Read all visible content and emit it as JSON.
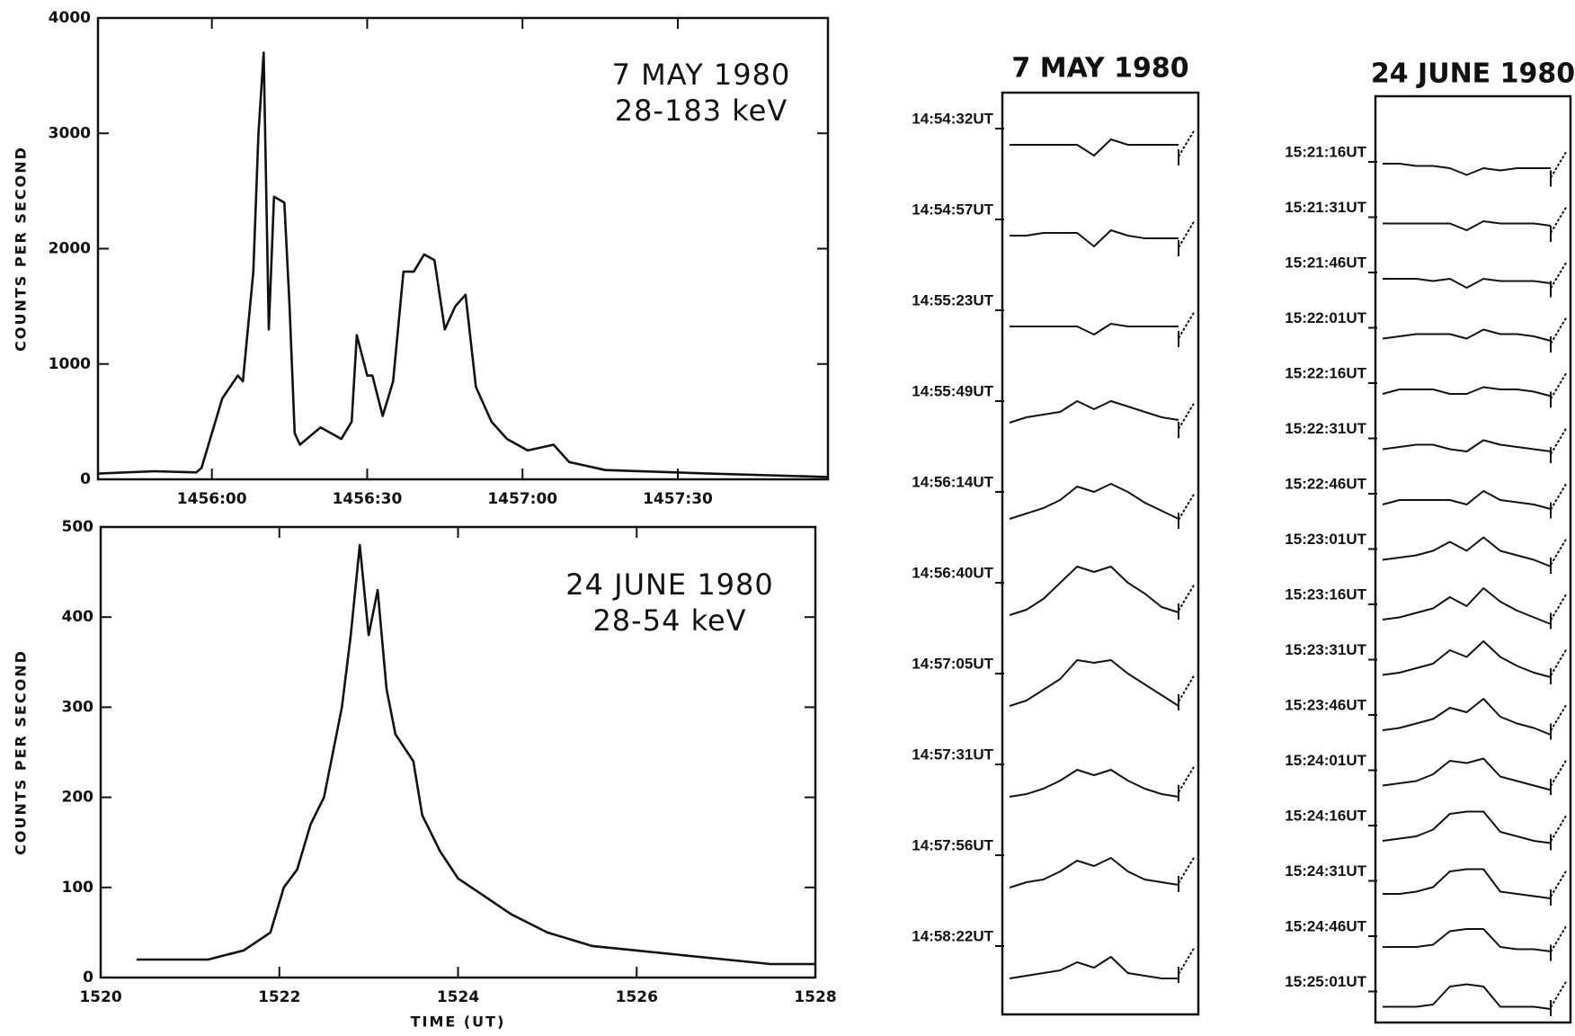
{
  "chart_data": [
    {
      "type": "line",
      "annotations": [
        "7 MAY 1980",
        "28-183 keV"
      ],
      "ylabel": "COUNTS PER SECOND",
      "x": [
        53738,
        53749,
        53757,
        53758,
        53762,
        53765,
        53766,
        53768,
        53769,
        53770,
        53771,
        53772,
        53774,
        53775,
        53776,
        53777,
        53781,
        53785,
        53787,
        53788,
        53790,
        53791,
        53793,
        53795,
        53797,
        53799,
        53801,
        53803,
        53805,
        53807,
        53809,
        53811,
        53814,
        53817,
        53821,
        53826,
        53829,
        53836,
        53856,
        53879
      ],
      "values": [
        50,
        70,
        60,
        100,
        700,
        900,
        850,
        1800,
        3000,
        3700,
        1300,
        2450,
        2400,
        1500,
        400,
        300,
        450,
        350,
        500,
        1250,
        900,
        900,
        550,
        850,
        1800,
        1800,
        1950,
        1900,
        1300,
        1500,
        1600,
        800,
        500,
        350,
        250,
        300,
        150,
        80,
        50,
        20
      ],
      "xlim": [
        53738,
        53879
      ],
      "xticks": [
        {
          "value": 53760,
          "label": "1456:00"
        },
        {
          "value": 53790,
          "label": "1456:30"
        },
        {
          "value": 53820,
          "label": "1457:00"
        },
        {
          "value": 53850,
          "label": "1457:30"
        }
      ],
      "ylim": [
        0,
        4000
      ],
      "yticks": [
        0,
        1000,
        2000,
        3000,
        4000
      ],
      "color": "#111111"
    },
    {
      "type": "line",
      "annotations": [
        "24 JUNE 1980",
        "28-54 keV"
      ],
      "ylabel": "COUNTS PER SECOND",
      "xlabel": "TIME (UT)",
      "x": [
        1520.4,
        1520.8,
        1521.2,
        1521.6,
        1521.9,
        1522.05,
        1522.2,
        1522.35,
        1522.5,
        1522.6,
        1522.7,
        1522.8,
        1522.9,
        1523.0,
        1523.1,
        1523.2,
        1523.3,
        1523.5,
        1523.6,
        1523.8,
        1524.0,
        1524.3,
        1524.6,
        1525.0,
        1525.5,
        1526.0,
        1526.5,
        1527.0,
        1527.5,
        1528.0
      ],
      "values": [
        20,
        20,
        20,
        30,
        50,
        100,
        120,
        170,
        200,
        250,
        300,
        380,
        480,
        380,
        430,
        320,
        270,
        240,
        180,
        140,
        110,
        90,
        70,
        50,
        35,
        30,
        25,
        20,
        15,
        15
      ],
      "xlim": [
        1520,
        1528
      ],
      "xticks": [
        1520,
        1522,
        1524,
        1526,
        1528
      ],
      "ylim": [
        0,
        500
      ],
      "yticks": [
        0,
        100,
        200,
        300,
        400,
        500
      ],
      "color": "#111111"
    },
    {
      "type": "stack",
      "title": "7 MAY 1980",
      "series": [
        {
          "name": "14:54:32UT",
          "values": [
            5,
            5,
            5,
            5,
            5,
            3,
            6,
            5,
            5,
            5,
            5
          ]
        },
        {
          "name": "14:54:57UT",
          "values": [
            5,
            5,
            5.5,
            5.5,
            5.5,
            3,
            6,
            5,
            4.5,
            4.5,
            4.5
          ]
        },
        {
          "name": "14:55:23UT",
          "values": [
            5,
            5,
            5,
            5,
            5,
            3.5,
            5.5,
            5,
            5,
            5,
            5
          ]
        },
        {
          "name": "14:55:49UT",
          "values": [
            4,
            5,
            5.5,
            6,
            8,
            6.5,
            8,
            7,
            6,
            5,
            4.5
          ]
        },
        {
          "name": "14:56:14UT",
          "values": [
            3,
            4,
            5,
            6.5,
            9,
            8,
            9.5,
            8,
            6,
            4.5,
            3
          ]
        },
        {
          "name": "14:56:40UT",
          "values": [
            2,
            3,
            5,
            8,
            11,
            10,
            11,
            8,
            6,
            3.5,
            2.5
          ]
        },
        {
          "name": "14:57:05UT",
          "values": [
            2,
            3,
            5,
            7,
            10.5,
            10,
            10.5,
            8,
            6,
            4,
            2
          ]
        },
        {
          "name": "14:57:31UT",
          "values": [
            2,
            2.5,
            3.5,
            5,
            7,
            6,
            7,
            5,
            3.5,
            2.5,
            2
          ]
        },
        {
          "name": "14:57:56UT",
          "values": [
            2,
            3,
            3.5,
            5,
            7,
            6,
            7.5,
            5,
            3.5,
            3,
            2.5
          ]
        },
        {
          "name": "14:58:22UT",
          "values": [
            2,
            2.5,
            3,
            3.5,
            5,
            4,
            6,
            3,
            2.5,
            2,
            2
          ]
        }
      ]
    },
    {
      "type": "stack",
      "title": "24 JUNE 1980",
      "series": [
        {
          "name": "15:21:16UT",
          "values": [
            6,
            6,
            5.5,
            5.5,
            5,
            3.5,
            5,
            4.5,
            5,
            5,
            5
          ]
        },
        {
          "name": "15:21:31UT",
          "values": [
            5,
            5,
            5,
            5,
            5,
            3.5,
            5.5,
            5,
            5,
            5,
            4.5
          ]
        },
        {
          "name": "15:21:46UT",
          "values": [
            5,
            5,
            5,
            4.5,
            5,
            3,
            5,
            4.5,
            4.5,
            4.5,
            4
          ]
        },
        {
          "name": "15:22:01UT",
          "values": [
            4,
            4.5,
            5,
            5,
            5,
            4,
            6,
            5,
            5,
            4.5,
            3.5
          ]
        },
        {
          "name": "15:22:16UT",
          "values": [
            4,
            5,
            5,
            5,
            4,
            4,
            5.5,
            5,
            5,
            4.5,
            3.5
          ]
        },
        {
          "name": "15:22:31UT",
          "values": [
            4,
            4.5,
            5,
            5,
            4,
            3.5,
            6,
            5,
            4.5,
            4,
            3.5
          ]
        },
        {
          "name": "15:22:46UT",
          "values": [
            4,
            5,
            5,
            5,
            5,
            4,
            7,
            5,
            4.5,
            4,
            3
          ]
        },
        {
          "name": "15:23:01UT",
          "values": [
            4,
            4.5,
            5,
            6,
            8,
            6,
            9,
            6,
            5,
            4,
            2.5
          ]
        },
        {
          "name": "15:23:16UT",
          "values": [
            3,
            3.5,
            4.5,
            5.5,
            8,
            6,
            10,
            7,
            5,
            3.5,
            2
          ]
        },
        {
          "name": "15:23:31UT",
          "values": [
            3,
            3.5,
            4.5,
            5.5,
            8.5,
            7,
            10.5,
            7,
            5,
            3.5,
            2.5
          ]
        },
        {
          "name": "15:23:46UT",
          "values": [
            3,
            3.5,
            4.5,
            5.5,
            8,
            7,
            10,
            6,
            4.5,
            3.5,
            2
          ]
        },
        {
          "name": "15:24:01UT",
          "values": [
            3,
            3.5,
            4,
            5.5,
            8.5,
            8,
            9,
            5,
            4,
            3,
            2
          ]
        },
        {
          "name": "15:24:16UT",
          "values": [
            3,
            3.5,
            4,
            5.5,
            9,
            9.5,
            9.5,
            5,
            4,
            3,
            2.5
          ]
        },
        {
          "name": "15:24:31UT",
          "values": [
            3.5,
            3.5,
            4,
            5,
            8.5,
            9,
            9,
            4,
            3.5,
            3,
            2.5
          ]
        },
        {
          "name": "15:24:46UT",
          "values": [
            4,
            4,
            4,
            4.5,
            7.5,
            8,
            8,
            4,
            3.5,
            3.5,
            3
          ]
        },
        {
          "name": "15:25:01UT",
          "values": [
            3,
            3,
            3,
            3.5,
            7.5,
            8,
            7.5,
            3,
            3,
            3,
            2.5
          ]
        }
      ]
    }
  ]
}
